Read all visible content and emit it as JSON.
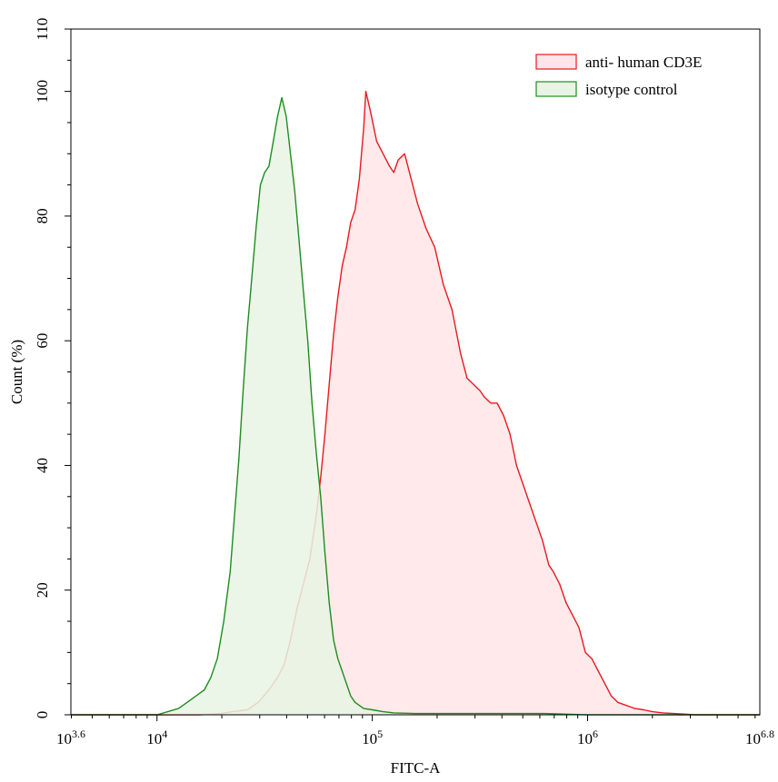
{
  "chart_data": {
    "type": "area",
    "xlabel": "FITC-A",
    "ylabel": "Count  (%)",
    "x_scale": "log10",
    "xlim": [
      3.6,
      6.8
    ],
    "ylim": [
      0,
      110
    ],
    "yticks": [
      0,
      20,
      40,
      60,
      80,
      100,
      110
    ],
    "xticks": [
      {
        "exp": 3.6,
        "base": "10",
        "sup": "3.6"
      },
      {
        "exp": 4,
        "base": "10",
        "sup": "4"
      },
      {
        "exp": 5,
        "base": "10",
        "sup": "5"
      },
      {
        "exp": 6,
        "base": "10",
        "sup": "6"
      },
      {
        "exp": 6.8,
        "base": "10",
        "sup": "6.8"
      }
    ],
    "legend_position": "top-right",
    "grid": false,
    "series": [
      {
        "name": "anti- human CD3E",
        "stroke": "#e8191f",
        "fill": "#ffe5e7",
        "points": [
          [
            3.6,
            0
          ],
          [
            4.0,
            0
          ],
          [
            4.2,
            0
          ],
          [
            4.3,
            0.2
          ],
          [
            4.35,
            0.5
          ],
          [
            4.42,
            0.8
          ],
          [
            4.47,
            2
          ],
          [
            4.52,
            4
          ],
          [
            4.56,
            6
          ],
          [
            4.59,
            8
          ],
          [
            4.62,
            12
          ],
          [
            4.65,
            17
          ],
          [
            4.68,
            21
          ],
          [
            4.71,
            25
          ],
          [
            4.74,
            32
          ],
          [
            4.76,
            38
          ],
          [
            4.78,
            45
          ],
          [
            4.8,
            53
          ],
          [
            4.82,
            61
          ],
          [
            4.84,
            67
          ],
          [
            4.86,
            72
          ],
          [
            4.88,
            75
          ],
          [
            4.9,
            79
          ],
          [
            4.92,
            81
          ],
          [
            4.94,
            86
          ],
          [
            4.96,
            94
          ],
          [
            4.97,
            100
          ],
          [
            4.99,
            97
          ],
          [
            5.02,
            92
          ],
          [
            5.05,
            90
          ],
          [
            5.08,
            88
          ],
          [
            5.1,
            87
          ],
          [
            5.12,
            89
          ],
          [
            5.15,
            90
          ],
          [
            5.18,
            86
          ],
          [
            5.21,
            82
          ],
          [
            5.25,
            78
          ],
          [
            5.29,
            75
          ],
          [
            5.33,
            69
          ],
          [
            5.37,
            65
          ],
          [
            5.41,
            58
          ],
          [
            5.44,
            54
          ],
          [
            5.47,
            53
          ],
          [
            5.5,
            52
          ],
          [
            5.52,
            51
          ],
          [
            5.55,
            50
          ],
          [
            5.58,
            50
          ],
          [
            5.61,
            48
          ],
          [
            5.64,
            45
          ],
          [
            5.67,
            40
          ],
          [
            5.7,
            37
          ],
          [
            5.73,
            34
          ],
          [
            5.76,
            31
          ],
          [
            5.79,
            28
          ],
          [
            5.82,
            24
          ],
          [
            5.84,
            23
          ],
          [
            5.87,
            21
          ],
          [
            5.9,
            18
          ],
          [
            5.93,
            16
          ],
          [
            5.96,
            14
          ],
          [
            5.99,
            10
          ],
          [
            6.02,
            9
          ],
          [
            6.05,
            7
          ],
          [
            6.08,
            5
          ],
          [
            6.11,
            3
          ],
          [
            6.14,
            2
          ],
          [
            6.18,
            1.5
          ],
          [
            6.22,
            1
          ],
          [
            6.26,
            0.8
          ],
          [
            6.3,
            0.5
          ],
          [
            6.35,
            0.3
          ],
          [
            6.4,
            0.2
          ],
          [
            6.5,
            0
          ],
          [
            6.6,
            0
          ],
          [
            6.8,
            0
          ]
        ]
      },
      {
        "name": "isotype control",
        "stroke": "#1f8c1f",
        "fill": "#e8f4e4",
        "points": [
          [
            3.6,
            0
          ],
          [
            3.8,
            0
          ],
          [
            4.0,
            0
          ],
          [
            4.05,
            0.5
          ],
          [
            4.1,
            1
          ],
          [
            4.14,
            2
          ],
          [
            4.18,
            3
          ],
          [
            4.22,
            4
          ],
          [
            4.25,
            6
          ],
          [
            4.28,
            9
          ],
          [
            4.31,
            15
          ],
          [
            4.34,
            23
          ],
          [
            4.36,
            32
          ],
          [
            4.38,
            41
          ],
          [
            4.4,
            52
          ],
          [
            4.42,
            62
          ],
          [
            4.44,
            70
          ],
          [
            4.46,
            78
          ],
          [
            4.48,
            85
          ],
          [
            4.5,
            87
          ],
          [
            4.52,
            88
          ],
          [
            4.54,
            92
          ],
          [
            4.56,
            96
          ],
          [
            4.58,
            99
          ],
          [
            4.6,
            96
          ],
          [
            4.62,
            90
          ],
          [
            4.64,
            84
          ],
          [
            4.66,
            76
          ],
          [
            4.68,
            68
          ],
          [
            4.7,
            60
          ],
          [
            4.72,
            50
          ],
          [
            4.74,
            42
          ],
          [
            4.76,
            35
          ],
          [
            4.78,
            26
          ],
          [
            4.8,
            18
          ],
          [
            4.82,
            12
          ],
          [
            4.84,
            9
          ],
          [
            4.86,
            7
          ],
          [
            4.88,
            5
          ],
          [
            4.9,
            3
          ],
          [
            4.92,
            2
          ],
          [
            4.96,
            1
          ],
          [
            5.0,
            0.8
          ],
          [
            5.05,
            0.5
          ],
          [
            5.1,
            0.3
          ],
          [
            5.2,
            0.2
          ],
          [
            5.3,
            0.2
          ],
          [
            5.4,
            0.2
          ],
          [
            5.6,
            0.2
          ],
          [
            5.8,
            0.2
          ],
          [
            6.0,
            0
          ],
          [
            6.4,
            0
          ],
          [
            6.8,
            0
          ]
        ]
      }
    ]
  }
}
